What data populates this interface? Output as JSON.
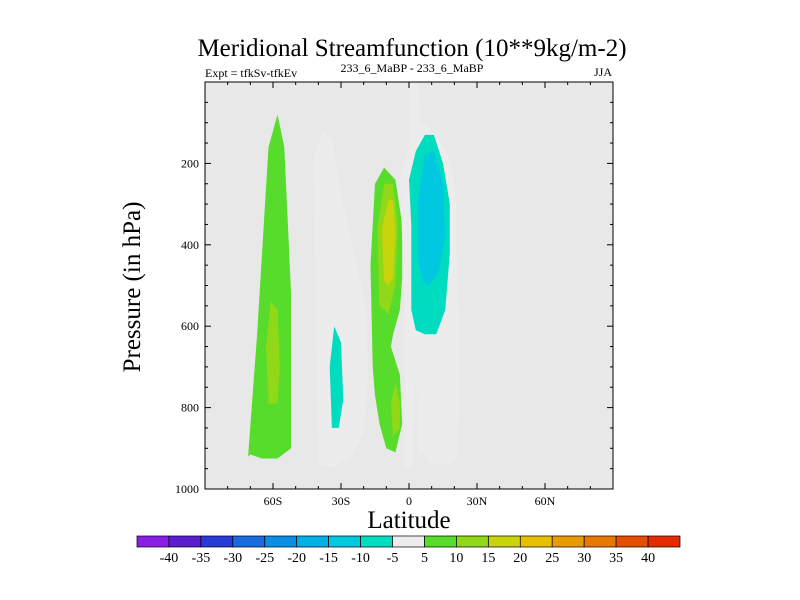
{
  "chart_data": {
    "type": "contour",
    "title": "Meridional Streamfunction (10**9kg/m-2)",
    "subtitle_left": "Expt = tfkSv-tfkEv",
    "subtitle_center": "233_6_MaBP - 233_6_MaBP",
    "subtitle_right": "JJA",
    "xlabel": "Latitude",
    "ylabel": "Pressure (in hPa)",
    "xlim": [
      -90,
      90
    ],
    "ylim": [
      1000,
      0
    ],
    "x_ticks": [
      {
        "value": -60,
        "label": "60S"
      },
      {
        "value": -30,
        "label": "30S"
      },
      {
        "value": 0,
        "label": "0"
      },
      {
        "value": 30,
        "label": "30N"
      },
      {
        "value": 60,
        "label": "60N"
      }
    ],
    "y_ticks": [
      {
        "value": 200,
        "label": "200"
      },
      {
        "value": 400,
        "label": "400"
      },
      {
        "value": 600,
        "label": "600"
      },
      {
        "value": 800,
        "label": "800"
      },
      {
        "value": 1000,
        "label": "1000"
      }
    ],
    "background_color": "#e8e8e8",
    "colorbar": {
      "levels": [
        "-40",
        "-35",
        "-30",
        "-25",
        "-20",
        "-15",
        "-10",
        "-5",
        "5",
        "10",
        "15",
        "20",
        "25",
        "30",
        "35",
        "40"
      ],
      "colors": [
        "#8a1ee6",
        "#5a1ed0",
        "#2a3ad8",
        "#1a6ae0",
        "#0a8ee6",
        "#00b0e6",
        "#00c8e0",
        "#00dcc0",
        "#ececec",
        "#58dc2c",
        "#90d818",
        "#c8d40c",
        "#e6c000",
        "#e69c00",
        "#e67800",
        "#e64e00",
        "#e62a00"
      ]
    },
    "regions": [
      {
        "id": "sh-green-cell",
        "level": "5",
        "polygon": [
          [
            -71,
            920
          ],
          [
            -67,
            620
          ],
          [
            -62,
            160
          ],
          [
            -58,
            80
          ],
          [
            -55,
            160
          ],
          [
            -52,
            520
          ],
          [
            -52,
            900
          ],
          [
            -58,
            925
          ],
          [
            -65,
            925
          ],
          [
            -70,
            915
          ]
        ]
      },
      {
        "id": "sh-green-core",
        "level": "10",
        "polygon": [
          [
            -62,
            790
          ],
          [
            -63,
            650
          ],
          [
            -61,
            540
          ],
          [
            -58,
            560
          ],
          [
            -57,
            700
          ],
          [
            -58,
            790
          ]
        ]
      },
      {
        "id": "midlat-cyan-cell",
        "level": "-5",
        "polygon": [
          [
            -40,
            930
          ],
          [
            -41,
            560
          ],
          [
            -42,
            190
          ],
          [
            -38,
            120
          ],
          [
            -34,
            140
          ],
          [
            -31,
            250
          ],
          [
            -27,
            350
          ],
          [
            -23,
            450
          ],
          [
            -19,
            560
          ],
          [
            -18,
            720
          ],
          [
            -20,
            860
          ],
          [
            -25,
            920
          ],
          [
            -34,
            948
          ],
          [
            -39,
            940
          ]
        ]
      },
      {
        "id": "midlat-cyan-core",
        "level": "-10",
        "polygon": [
          [
            -34,
            850
          ],
          [
            -35,
            700
          ],
          [
            -33,
            600
          ],
          [
            -30,
            640
          ],
          [
            -29,
            780
          ],
          [
            -31,
            850
          ]
        ]
      },
      {
        "id": "tropical-green-cell",
        "level": "5",
        "polygon": [
          [
            -16,
            700
          ],
          [
            -17,
            450
          ],
          [
            -15,
            250
          ],
          [
            -11,
            210
          ],
          [
            -6,
            240
          ],
          [
            -3,
            350
          ],
          [
            -3,
            480
          ],
          [
            -4,
            560
          ],
          [
            -7,
            620
          ],
          [
            -8,
            650
          ],
          [
            -4,
            720
          ],
          [
            -3,
            840
          ],
          [
            -6,
            910
          ],
          [
            -10,
            900
          ],
          [
            -13,
            840
          ],
          [
            -15,
            770
          ]
        ]
      },
      {
        "id": "tropical-yellow",
        "level": "10",
        "polygon": [
          [
            -13,
            550
          ],
          [
            -14,
            360
          ],
          [
            -11,
            250
          ],
          [
            -7,
            250
          ],
          [
            -5,
            350
          ],
          [
            -6,
            500
          ],
          [
            -9,
            570
          ]
        ]
      },
      {
        "id": "tropical-yellow-lower",
        "level": "10",
        "polygon": [
          [
            -7,
            870
          ],
          [
            -8,
            790
          ],
          [
            -6,
            740
          ],
          [
            -4,
            790
          ],
          [
            -4,
            850
          ]
        ]
      },
      {
        "id": "tropical-orange",
        "level": "15",
        "polygon": [
          [
            -11,
            490
          ],
          [
            -12,
            360
          ],
          [
            -9,
            290
          ],
          [
            -7,
            290
          ],
          [
            -6,
            370
          ],
          [
            -7,
            480
          ],
          [
            -9,
            500
          ]
        ]
      },
      {
        "id": "eq-cyan-cell",
        "level": "-5",
        "polygon": [
          [
            -2,
            950
          ],
          [
            -2,
            500
          ],
          [
            -3,
            380
          ],
          [
            -4,
            230
          ],
          [
            0,
            170
          ],
          [
            0,
            0
          ],
          [
            4,
            0
          ],
          [
            5,
            100
          ],
          [
            9,
            110
          ],
          [
            14,
            150
          ],
          [
            18,
            190
          ],
          [
            21,
            300
          ],
          [
            21,
            420
          ],
          [
            22,
            600
          ],
          [
            22,
            800
          ],
          [
            21,
            920
          ],
          [
            18,
            940
          ],
          [
            9,
            940
          ],
          [
            6,
            910
          ],
          [
            3,
            940
          ]
        ]
      },
      {
        "id": "eq-cyan-inner",
        "level": "-10",
        "polygon": [
          [
            1,
            560
          ],
          [
            1,
            350
          ],
          [
            0,
            240
          ],
          [
            3,
            170
          ],
          [
            7,
            130
          ],
          [
            11,
            130
          ],
          [
            15,
            200
          ],
          [
            18,
            300
          ],
          [
            18,
            420
          ],
          [
            16,
            560
          ],
          [
            12,
            620
          ],
          [
            7,
            620
          ],
          [
            3,
            610
          ]
        ]
      },
      {
        "id": "eq-cyan-core",
        "level": "-15",
        "polygon": [
          [
            4,
            440
          ],
          [
            4,
            290
          ],
          [
            7,
            180
          ],
          [
            11,
            170
          ],
          [
            15,
            250
          ],
          [
            16,
            380
          ],
          [
            13,
            470
          ],
          [
            9,
            500
          ],
          [
            6,
            490
          ]
        ]
      },
      {
        "id": "eq-notch",
        "level": "none",
        "polygon": [
          [
            2,
            1000
          ],
          [
            2,
            860
          ],
          [
            3,
            720
          ],
          [
            4,
            860
          ],
          [
            4,
            1000
          ]
        ]
      }
    ]
  }
}
